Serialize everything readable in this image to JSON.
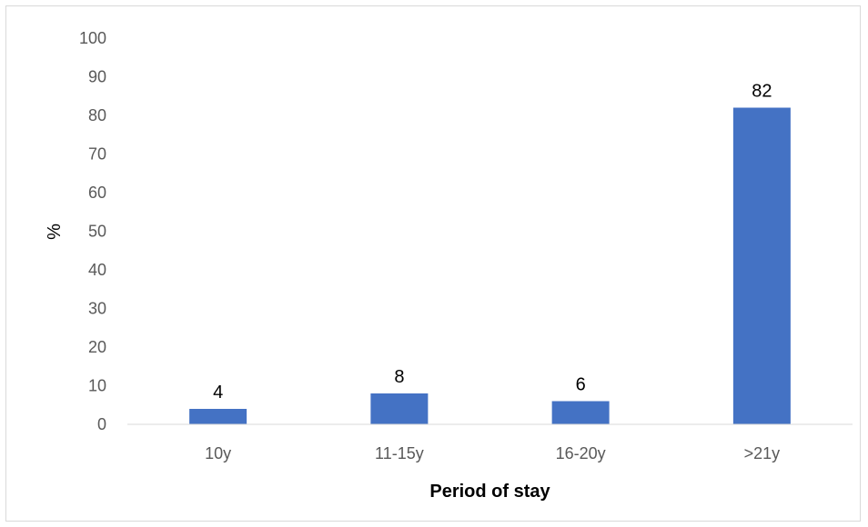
{
  "chart_data": {
    "type": "bar",
    "categories": [
      "10y",
      "11-15y",
      "16-20y",
      ">21y"
    ],
    "values": [
      4,
      8,
      6,
      82
    ],
    "data_labels": [
      "4",
      "8",
      "6",
      "82"
    ],
    "xlabel": "Period of stay",
    "ylabel": "%",
    "ylim": [
      0,
      100
    ],
    "yticks": [
      "0",
      "10",
      "20",
      "30",
      "40",
      "50",
      "60",
      "70",
      "80",
      "90",
      "100"
    ],
    "bar_color": "#4472c4",
    "grid": false,
    "legend": "none"
  }
}
